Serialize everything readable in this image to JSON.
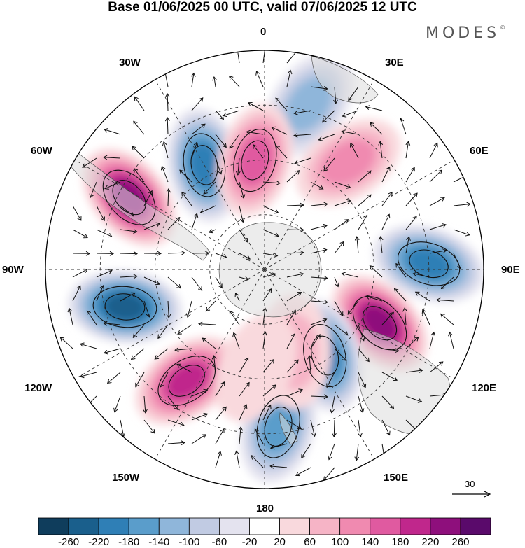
{
  "title": "Base 01/06/2025 00 UTC, valid 07/06/2025 12 UTC",
  "brand": "MODES",
  "brand_mark": "©",
  "longitude_labels": {
    "top": "0",
    "top_right": "30E",
    "right_upper": "60E",
    "right": "90E",
    "right_lower": "120E",
    "bottom_right": "150E",
    "bottom": "180",
    "bottom_left": "150W",
    "left_lower": "120W",
    "left": "90W",
    "left_upper": "60W",
    "top_left": "30W"
  },
  "reference_vector": {
    "label": "30"
  },
  "colorbar": {
    "labels": [
      "-260",
      "-220",
      "-180",
      "-140",
      "-100",
      "-60",
      "-20",
      "20",
      "60",
      "100",
      "140",
      "180",
      "220",
      "260"
    ],
    "colors": [
      "#0f3d5c",
      "#1a5f8c",
      "#2f7fb6",
      "#5a9dcb",
      "#8fb6da",
      "#c1cbe3",
      "#e4e3ef",
      "#ffffff",
      "#f9d9dd",
      "#f6b4c6",
      "#f08ab0",
      "#e05aa0",
      "#c0278c",
      "#8e0f7c",
      "#5a0a6b"
    ]
  },
  "anomaly_centers": [
    {
      "lon_deg": -30,
      "colat": 0.55,
      "value": -200
    },
    {
      "lon_deg": 15,
      "colat": 0.78,
      "value": -120
    },
    {
      "lon_deg": -5,
      "colat": 0.5,
      "value": 160
    },
    {
      "lon_deg": 38,
      "colat": 0.62,
      "value": 120
    },
    {
      "lon_deg": -62,
      "colat": 0.7,
      "value": 240
    },
    {
      "lon_deg": 88,
      "colat": 0.75,
      "value": -180
    },
    {
      "lon_deg": 115,
      "colat": 0.58,
      "value": 240
    },
    {
      "lon_deg": -105,
      "colat": 0.66,
      "value": -220
    },
    {
      "lon_deg": 145,
      "colat": 0.48,
      "value": -200
    },
    {
      "lon_deg": -145,
      "colat": 0.62,
      "value": 200
    },
    {
      "lon_deg": 175,
      "colat": 0.72,
      "value": -160
    },
    {
      "lon_deg": 160,
      "colat": 0.4,
      "value": 60
    },
    {
      "lon_deg": -175,
      "colat": 0.45,
      "value": 40
    }
  ]
}
